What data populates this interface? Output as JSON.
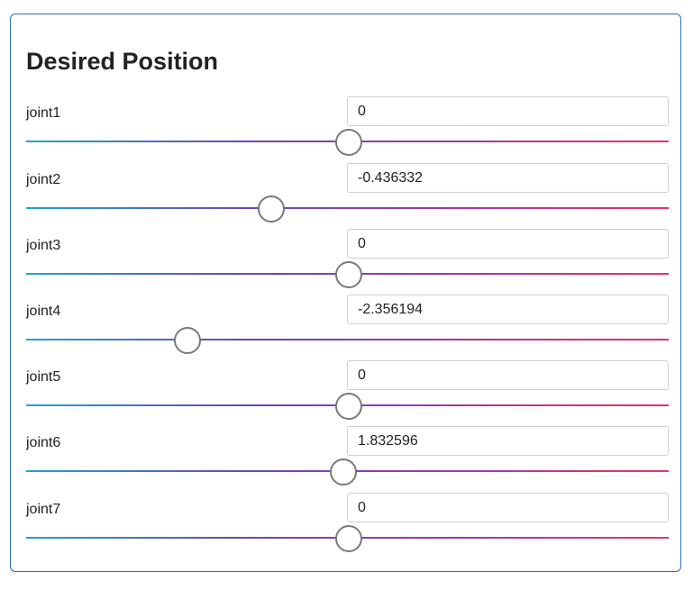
{
  "panel": {
    "title": "Desired Position"
  },
  "joints": [
    {
      "label": "joint1",
      "value": "0",
      "fraction": 0.5
    },
    {
      "label": "joint2",
      "value": "-0.436332",
      "fraction": 0.38
    },
    {
      "label": "joint3",
      "value": "0",
      "fraction": 0.5
    },
    {
      "label": "joint4",
      "value": "-2.356194",
      "fraction": 0.25
    },
    {
      "label": "joint5",
      "value": "0",
      "fraction": 0.5
    },
    {
      "label": "joint6",
      "value": "1.832596",
      "fraction": 0.492
    },
    {
      "label": "joint7",
      "value": "0",
      "fraction": 0.5
    }
  ],
  "colors": {
    "panel_border": "#2f6fb8",
    "track_start": "#1fa3d6",
    "track_mid": "#6b46b8",
    "track_end": "#e8306a",
    "thumb_border": "#7a7a7a"
  }
}
